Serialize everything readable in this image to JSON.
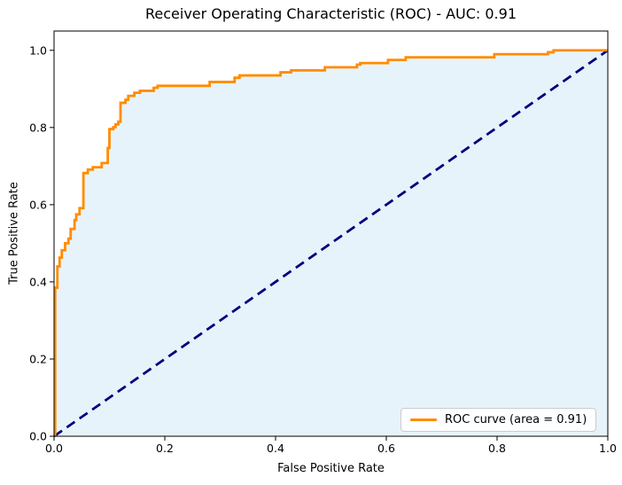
{
  "figure": {
    "background": "#ffffff",
    "text_color": "#000000"
  },
  "chart_data": {
    "type": "line",
    "subtype": "roc-step-curve",
    "title": "Receiver Operating Characteristic (ROC) - AUC: 0.91",
    "xlabel": "False Positive Rate",
    "ylabel": "True Positive Rate",
    "auc": 0.91,
    "xlim": [
      0.0,
      1.0
    ],
    "ylim": [
      0.0,
      1.05
    ],
    "xticks": [
      0.0,
      0.2,
      0.4,
      0.6,
      0.8,
      1.0
    ],
    "yticks": [
      0.0,
      0.2,
      0.4,
      0.6,
      0.8,
      1.0
    ],
    "tick_format": "0.1f",
    "grid": false,
    "frame_color": "#000000",
    "legend": {
      "position": "lower right",
      "entries": [
        {
          "label": "ROC curve (area = 0.91)",
          "color": "#ff8c00"
        }
      ]
    },
    "series": [
      {
        "name": "ROC curve",
        "style": "solid-step",
        "color": "#ff8c00",
        "fill_under_color": "#e7f3fa",
        "linewidth": 2.8,
        "points": [
          [
            0.002,
            0.0
          ],
          [
            0.002,
            0.385
          ],
          [
            0.006,
            0.385
          ],
          [
            0.006,
            0.44
          ],
          [
            0.01,
            0.44
          ],
          [
            0.01,
            0.463
          ],
          [
            0.014,
            0.463
          ],
          [
            0.014,
            0.482
          ],
          [
            0.02,
            0.482
          ],
          [
            0.02,
            0.5
          ],
          [
            0.026,
            0.5
          ],
          [
            0.026,
            0.512
          ],
          [
            0.03,
            0.512
          ],
          [
            0.03,
            0.537
          ],
          [
            0.037,
            0.537
          ],
          [
            0.037,
            0.56
          ],
          [
            0.04,
            0.56
          ],
          [
            0.04,
            0.575
          ],
          [
            0.046,
            0.575
          ],
          [
            0.046,
            0.591
          ],
          [
            0.053,
            0.591
          ],
          [
            0.053,
            0.682
          ],
          [
            0.061,
            0.682
          ],
          [
            0.061,
            0.691
          ],
          [
            0.07,
            0.691
          ],
          [
            0.07,
            0.697
          ],
          [
            0.086,
            0.697
          ],
          [
            0.086,
            0.708
          ],
          [
            0.097,
            0.708
          ],
          [
            0.097,
            0.747
          ],
          [
            0.1,
            0.747
          ],
          [
            0.1,
            0.796
          ],
          [
            0.107,
            0.796
          ],
          [
            0.107,
            0.801
          ],
          [
            0.111,
            0.801
          ],
          [
            0.111,
            0.808
          ],
          [
            0.116,
            0.808
          ],
          [
            0.116,
            0.815
          ],
          [
            0.12,
            0.815
          ],
          [
            0.12,
            0.864
          ],
          [
            0.129,
            0.864
          ],
          [
            0.129,
            0.872
          ],
          [
            0.134,
            0.872
          ],
          [
            0.134,
            0.882
          ],
          [
            0.145,
            0.882
          ],
          [
            0.145,
            0.89
          ],
          [
            0.155,
            0.89
          ],
          [
            0.155,
            0.895
          ],
          [
            0.18,
            0.895
          ],
          [
            0.18,
            0.903
          ],
          [
            0.187,
            0.903
          ],
          [
            0.187,
            0.908
          ],
          [
            0.281,
            0.908
          ],
          [
            0.281,
            0.918
          ],
          [
            0.326,
            0.918
          ],
          [
            0.326,
            0.929
          ],
          [
            0.335,
            0.929
          ],
          [
            0.335,
            0.935
          ],
          [
            0.409,
            0.935
          ],
          [
            0.409,
            0.943
          ],
          [
            0.428,
            0.943
          ],
          [
            0.428,
            0.948
          ],
          [
            0.489,
            0.948
          ],
          [
            0.489,
            0.956
          ],
          [
            0.547,
            0.956
          ],
          [
            0.547,
            0.963
          ],
          [
            0.553,
            0.963
          ],
          [
            0.553,
            0.967
          ],
          [
            0.603,
            0.967
          ],
          [
            0.603,
            0.975
          ],
          [
            0.635,
            0.975
          ],
          [
            0.635,
            0.982
          ],
          [
            0.795,
            0.982
          ],
          [
            0.795,
            0.99
          ],
          [
            0.892,
            0.99
          ],
          [
            0.892,
            0.995
          ],
          [
            0.902,
            0.995
          ],
          [
            0.902,
            1.0
          ],
          [
            1.0,
            1.0
          ]
        ]
      },
      {
        "name": "chance diagonal",
        "style": "dashed",
        "color": "#000080",
        "linewidth": 2.8,
        "dash_pattern": [
          11,
          6.5
        ],
        "points": [
          [
            0.0,
            0.0
          ],
          [
            1.0,
            1.0
          ]
        ]
      }
    ]
  }
}
